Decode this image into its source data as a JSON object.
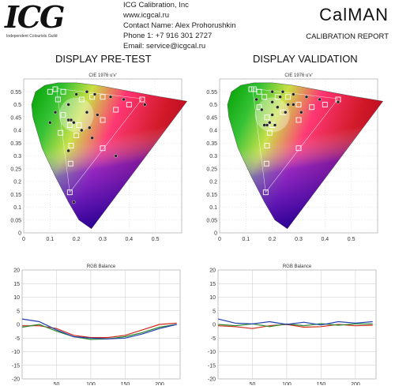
{
  "header": {
    "logo_text": "ICG",
    "logo_subtitle": "Independent Colourists Guild",
    "contact_lines": [
      "ICG Calibration, Inc",
      "www.icgcal.ru",
      "Contact Name: Alex Prohorushkin",
      "Phone 1: +7 916 301 2727",
      "Email: service@icgcal.ru"
    ],
    "brand": "CalMAN",
    "report_title": "CALIBRATION REPORT"
  },
  "sections": {
    "left_title": "DISPLAY PRE-TEST",
    "right_title": "DISPLAY VALIDATION"
  },
  "colors": {
    "red_line": "#d02a1a",
    "green_line": "#2a8a2a",
    "blue_line": "#1f3fb0",
    "grid": "#c8c8c8"
  },
  "chart_data": [
    {
      "type": "scatter",
      "title": "CIE 1976 u'v'",
      "xlim": [
        0,
        0.6
      ],
      "ylim": [
        0,
        0.6
      ],
      "x_ticks": [
        "0",
        "0.1",
        "0.2",
        "0.3",
        "0.4",
        "0.5"
      ],
      "y_ticks": [
        "0",
        "0.05",
        "0.1",
        "0.15",
        "0.2",
        "0.25",
        "0.3",
        "0.35",
        "0.4",
        "0.45",
        "0.5",
        "0.55"
      ],
      "series": [
        {
          "marker": "square",
          "points": [
            [
              0.175,
              0.158
            ],
            [
              0.178,
              0.27
            ],
            [
              0.18,
              0.34
            ],
            [
              0.2,
              0.38
            ],
            [
              0.21,
              0.42
            ],
            [
              0.175,
              0.42
            ],
            [
              0.14,
              0.39
            ],
            [
              0.15,
              0.46
            ],
            [
              0.13,
              0.52
            ],
            [
              0.15,
              0.55
            ],
            [
              0.22,
              0.52
            ],
            [
              0.26,
              0.53
            ],
            [
              0.3,
              0.53
            ],
            [
              0.3,
              0.44
            ],
            [
              0.35,
              0.48
            ],
            [
              0.4,
              0.5
            ],
            [
              0.45,
              0.52
            ],
            [
              0.3,
              0.33
            ],
            [
              0.12,
              0.56
            ],
            [
              0.1,
              0.55
            ]
          ]
        },
        {
          "marker": "circle",
          "points": [
            [
              0.2,
              0.54
            ],
            [
              0.24,
              0.55
            ],
            [
              0.27,
              0.54
            ],
            [
              0.33,
              0.53
            ],
            [
              0.38,
              0.52
            ],
            [
              0.46,
              0.5
            ],
            [
              0.17,
              0.5
            ],
            [
              0.12,
              0.47
            ],
            [
              0.1,
              0.43
            ],
            [
              0.17,
              0.44
            ],
            [
              0.19,
              0.43
            ],
            [
              0.18,
              0.44
            ],
            [
              0.24,
              0.47
            ],
            [
              0.28,
              0.46
            ],
            [
              0.22,
              0.4
            ],
            [
              0.17,
              0.32
            ],
            [
              0.35,
              0.3
            ],
            [
              0.19,
              0.12
            ],
            [
              0.25,
              0.41
            ],
            [
              0.26,
              0.37
            ]
          ]
        }
      ]
    },
    {
      "type": "scatter",
      "title": "CIE 1976 u'v'",
      "xlim": [
        0,
        0.6
      ],
      "ylim": [
        0,
        0.6
      ],
      "x_ticks": [
        "0",
        "0.1",
        "0.2",
        "0.3",
        "0.4",
        "0.5"
      ],
      "y_ticks": [
        "0",
        "0.05",
        "0.1",
        "0.15",
        "0.2",
        "0.25",
        "0.3",
        "0.35",
        "0.4",
        "0.45",
        "0.5",
        "0.55"
      ],
      "series": [
        {
          "marker": "square",
          "points": [
            [
              0.175,
              0.158
            ],
            [
              0.178,
              0.27
            ],
            [
              0.18,
              0.34
            ],
            [
              0.19,
              0.39
            ],
            [
              0.2,
              0.42
            ],
            [
              0.18,
              0.45
            ],
            [
              0.15,
              0.49
            ],
            [
              0.13,
              0.56
            ],
            [
              0.15,
              0.55
            ],
            [
              0.17,
              0.53
            ],
            [
              0.22,
              0.53
            ],
            [
              0.26,
              0.53
            ],
            [
              0.3,
              0.5
            ],
            [
              0.35,
              0.49
            ],
            [
              0.4,
              0.5
            ],
            [
              0.45,
              0.52
            ],
            [
              0.3,
              0.33
            ],
            [
              0.3,
              0.44
            ],
            [
              0.24,
              0.47
            ],
            [
              0.12,
              0.56
            ]
          ]
        },
        {
          "marker": "circle",
          "points": [
            [
              0.2,
              0.55
            ],
            [
              0.24,
              0.55
            ],
            [
              0.28,
              0.54
            ],
            [
              0.33,
              0.53
            ],
            [
              0.38,
              0.52
            ],
            [
              0.45,
              0.51
            ],
            [
              0.2,
              0.51
            ],
            [
              0.22,
              0.49
            ],
            [
              0.2,
              0.46
            ],
            [
              0.19,
              0.43
            ],
            [
              0.18,
              0.42
            ],
            [
              0.17,
              0.42
            ],
            [
              0.21,
              0.42
            ],
            [
              0.25,
              0.47
            ],
            [
              0.28,
              0.5
            ],
            [
              0.31,
              0.47
            ],
            [
              0.14,
              0.52
            ],
            [
              0.16,
              0.48
            ],
            [
              0.23,
              0.53
            ],
            [
              0.26,
              0.5
            ]
          ]
        }
      ]
    },
    {
      "type": "line",
      "title": "RGB Balance",
      "ylim": [
        -20,
        20
      ],
      "xlim": [
        0,
        230
      ],
      "x_ticks": [
        "50",
        "100",
        "150",
        "200"
      ],
      "y_ticks": [
        "20",
        "15",
        "10",
        "5",
        "0",
        "-5",
        "-10",
        "-15",
        "-20"
      ],
      "x": [
        0,
        25,
        50,
        75,
        100,
        125,
        150,
        175,
        200,
        225
      ],
      "series": [
        {
          "color": "red",
          "values": [
            -0.5,
            -0.5,
            -1.5,
            -4.0,
            -4.8,
            -4.8,
            -4.0,
            -2.0,
            0.0,
            0.5
          ]
        },
        {
          "color": "green",
          "values": [
            -1.0,
            0.0,
            -2.5,
            -4.5,
            -5.5,
            -5.3,
            -4.5,
            -3.0,
            -1.0,
            0.0
          ]
        },
        {
          "color": "blue",
          "values": [
            2.0,
            1.0,
            -2.0,
            -4.5,
            -5.0,
            -5.3,
            -5.0,
            -3.5,
            -1.5,
            0.0
          ]
        }
      ]
    },
    {
      "type": "line",
      "title": "RGB Balance",
      "ylim": [
        -20,
        20
      ],
      "xlim": [
        0,
        230
      ],
      "x_ticks": [
        "50",
        "100",
        "150",
        "200"
      ],
      "y_ticks": [
        "20",
        "15",
        "10",
        "5",
        "0",
        "-5",
        "-10",
        "-15",
        "-20"
      ],
      "x": [
        0,
        25,
        50,
        75,
        100,
        125,
        150,
        175,
        200,
        225
      ],
      "series": [
        {
          "color": "red",
          "values": [
            -0.5,
            -0.8,
            -1.5,
            -0.5,
            0.0,
            -1.0,
            -0.8,
            0.0,
            -0.5,
            -0.3
          ]
        },
        {
          "color": "green",
          "values": [
            0.0,
            -0.5,
            0.2,
            -0.8,
            0.2,
            -0.5,
            0.3,
            -0.3,
            0.2,
            0.2
          ]
        },
        {
          "color": "blue",
          "values": [
            2.0,
            0.5,
            0.2,
            1.0,
            0.0,
            0.8,
            -0.2,
            1.0,
            0.5,
            1.0
          ]
        }
      ]
    }
  ]
}
